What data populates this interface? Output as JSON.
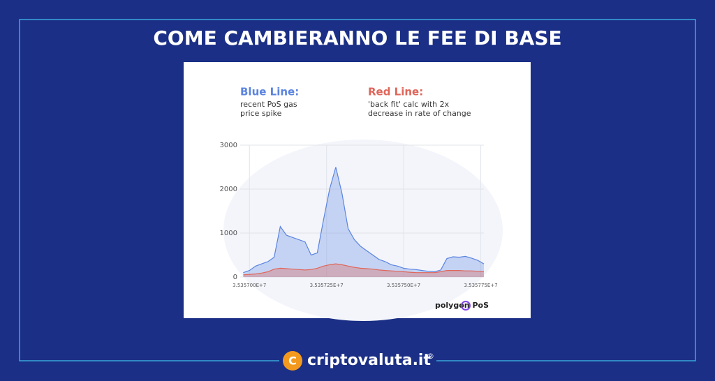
{
  "header": {
    "title": "COME CAMBIERANNO LE FEE DI BASE"
  },
  "chart_data": {
    "type": "area",
    "x": [
      35356980,
      35357000,
      35357020,
      35357040,
      35357060,
      35357080,
      35357100,
      35357120,
      35357140,
      35357160,
      35357180,
      35357200,
      35357220,
      35357240,
      35357260,
      35357280,
      35357300,
      35357320,
      35357340,
      35357360,
      35357380,
      35357400,
      35357420,
      35357440,
      35357460,
      35357480,
      35357500,
      35357520,
      35357540,
      35357560,
      35357580,
      35357600,
      35357620,
      35357640,
      35357660,
      35357680,
      35357700,
      35357720,
      35357740,
      35357760
    ],
    "series": [
      {
        "name": "Blue Line:",
        "color": "#5b84e0",
        "notes": [
          "recent PoS gas",
          "price spike"
        ],
        "values": [
          100,
          150,
          250,
          300,
          350,
          450,
          1150,
          950,
          900,
          850,
          800,
          500,
          550,
          1300,
          2000,
          2500,
          1900,
          1100,
          850,
          700,
          600,
          500,
          400,
          350,
          280,
          250,
          200,
          180,
          170,
          150,
          130,
          120,
          160,
          420,
          460,
          450,
          470,
          430,
          380,
          300
        ]
      },
      {
        "name": "Red Line:",
        "color": "#e0665a",
        "notes": [
          "'back fit' calc with 2x",
          "decrease in rate of change"
        ],
        "values": [
          50,
          60,
          70,
          90,
          120,
          180,
          200,
          190,
          180,
          170,
          160,
          170,
          200,
          250,
          280,
          300,
          280,
          250,
          220,
          200,
          190,
          180,
          160,
          150,
          140,
          130,
          120,
          110,
          100,
          100,
          100,
          100,
          120,
          150,
          150,
          150,
          140,
          140,
          130,
          120
        ]
      }
    ],
    "xlim": [
      35356970,
      35357760
    ],
    "xticks": [
      {
        "value": 35357000,
        "label": "3.535700E+7"
      },
      {
        "value": 35357250,
        "label": "3.535725E+7"
      },
      {
        "value": 35357500,
        "label": "3.535750E+7"
      },
      {
        "value": 35357750,
        "label": "3.535775E+7"
      }
    ],
    "ylim": [
      0,
      3000
    ],
    "yticks": [
      0,
      1000,
      2000,
      3000
    ],
    "grid": true
  },
  "brand": {
    "chart_logo": "polygon PoS",
    "site": "criptovaluta.it",
    "mark": "®"
  }
}
